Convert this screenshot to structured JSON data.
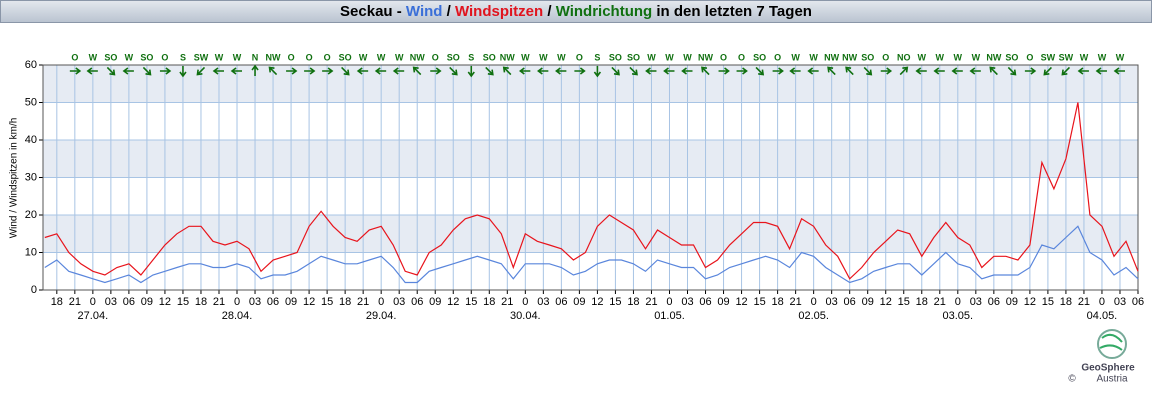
{
  "chart_data": {
    "type": "line",
    "title_parts": [
      {
        "text": "Seckau - ",
        "color": "#000000"
      },
      {
        "text": "Wind",
        "color": "#3a6fd8"
      },
      {
        "text": " / ",
        "color": "#000000"
      },
      {
        "text": "Windspitzen",
        "color": "#e0141e"
      },
      {
        "text": " / ",
        "color": "#000000"
      },
      {
        "text": "Windrichtung",
        "color": "#107010"
      },
      {
        "text": " in den letzten 7 Tagen",
        "color": "#000000"
      }
    ],
    "y_label": "Wind / Windspitzen in km/h",
    "x": [
      -8,
      -6,
      -4,
      -2,
      0,
      2,
      4,
      6,
      8,
      10,
      12,
      14,
      16,
      18,
      20,
      22,
      24,
      26,
      28,
      30,
      32,
      34,
      36,
      38,
      40,
      42,
      44,
      46,
      48,
      50,
      52,
      54,
      56,
      58,
      60,
      62,
      64,
      66,
      68,
      70,
      72,
      74,
      76,
      78,
      80,
      82,
      84,
      86,
      88,
      90,
      92,
      94,
      96,
      98,
      100,
      102,
      104,
      106,
      108,
      110,
      112,
      114,
      116,
      118,
      120,
      122,
      124,
      126,
      128,
      130,
      132,
      134,
      136,
      138,
      140,
      142,
      144,
      146,
      148,
      150,
      152,
      154,
      156,
      158,
      160,
      162,
      164,
      166,
      168,
      170,
      172,
      174
    ],
    "series": [
      {
        "name": "Windspitzen",
        "color": "#e8141c",
        "values": [
          14,
          15,
          10,
          7,
          5,
          4,
          6,
          7,
          4,
          8,
          12,
          15,
          17,
          17,
          13,
          12,
          13,
          11,
          5,
          8,
          9,
          10,
          17,
          21,
          17,
          14,
          13,
          16,
          17,
          12,
          5,
          4,
          10,
          12,
          16,
          19,
          20,
          19,
          15,
          6,
          15,
          13,
          12,
          11,
          8,
          10,
          17,
          20,
          18,
          16,
          11,
          16,
          14,
          12,
          12,
          6,
          8,
          12,
          15,
          18,
          18,
          17,
          11,
          19,
          17,
          12,
          9,
          3,
          6,
          10,
          13,
          16,
          15,
          9,
          14,
          18,
          14,
          12,
          6,
          9,
          9,
          8,
          12,
          34,
          27,
          35,
          50,
          20,
          17,
          9,
          13,
          5
        ]
      },
      {
        "name": "Wind",
        "color": "#5a86dc",
        "values": [
          6,
          8,
          5,
          4,
          3,
          2,
          3,
          4,
          2,
          4,
          5,
          6,
          7,
          7,
          6,
          6,
          7,
          6,
          3,
          4,
          4,
          5,
          7,
          9,
          8,
          7,
          7,
          8,
          9,
          6,
          2,
          2,
          5,
          6,
          7,
          8,
          9,
          8,
          7,
          3,
          7,
          7,
          7,
          6,
          4,
          5,
          7,
          8,
          8,
          7,
          5,
          8,
          7,
          6,
          6,
          3,
          4,
          6,
          7,
          8,
          9,
          8,
          6,
          10,
          9,
          6,
          4,
          2,
          3,
          5,
          6,
          7,
          7,
          4,
          7,
          10,
          7,
          6,
          3,
          4,
          4,
          4,
          6,
          12,
          11,
          14,
          17,
          10,
          8,
          4,
          6,
          3
        ]
      }
    ],
    "xlim": [
      -8.3,
      174
    ],
    "ylim": [
      0,
      60
    ],
    "yticks": [
      0,
      10,
      20,
      30,
      40,
      50,
      60
    ],
    "xticks": [
      {
        "value": -6,
        "label": "18"
      },
      {
        "value": -3,
        "label": "21"
      },
      {
        "value": 0,
        "label": "0"
      },
      {
        "value": 3,
        "label": "03"
      },
      {
        "value": 6,
        "label": "06"
      },
      {
        "value": 9,
        "label": "09"
      },
      {
        "value": 12,
        "label": "12"
      },
      {
        "value": 15,
        "label": "15"
      },
      {
        "value": 18,
        "label": "18"
      },
      {
        "value": 21,
        "label": "21"
      },
      {
        "value": 24,
        "label": "0"
      },
      {
        "value": 27,
        "label": "03"
      },
      {
        "value": 30,
        "label": "06"
      },
      {
        "value": 33,
        "label": "09"
      },
      {
        "value": 36,
        "label": "12"
      },
      {
        "value": 39,
        "label": "15"
      },
      {
        "value": 42,
        "label": "18"
      },
      {
        "value": 45,
        "label": "21"
      },
      {
        "value": 48,
        "label": "0"
      },
      {
        "value": 51,
        "label": "03"
      },
      {
        "value": 54,
        "label": "06"
      },
      {
        "value": 57,
        "label": "09"
      },
      {
        "value": 60,
        "label": "12"
      },
      {
        "value": 63,
        "label": "15"
      },
      {
        "value": 66,
        "label": "18"
      },
      {
        "value": 69,
        "label": "21"
      },
      {
        "value": 72,
        "label": "0"
      },
      {
        "value": 75,
        "label": "03"
      },
      {
        "value": 78,
        "label": "06"
      },
      {
        "value": 81,
        "label": "09"
      },
      {
        "value": 84,
        "label": "12"
      },
      {
        "value": 87,
        "label": "15"
      },
      {
        "value": 90,
        "label": "18"
      },
      {
        "value": 93,
        "label": "21"
      },
      {
        "value": 96,
        "label": "0"
      },
      {
        "value": 99,
        "label": "03"
      },
      {
        "value": 102,
        "label": "06"
      },
      {
        "value": 105,
        "label": "09"
      },
      {
        "value": 108,
        "label": "12"
      },
      {
        "value": 111,
        "label": "15"
      },
      {
        "value": 114,
        "label": "18"
      },
      {
        "value": 117,
        "label": "21"
      },
      {
        "value": 120,
        "label": "0"
      },
      {
        "value": 123,
        "label": "03"
      },
      {
        "value": 126,
        "label": "06"
      },
      {
        "value": 129,
        "label": "09"
      },
      {
        "value": 132,
        "label": "12"
      },
      {
        "value": 135,
        "label": "15"
      },
      {
        "value": 138,
        "label": "18"
      },
      {
        "value": 141,
        "label": "21"
      },
      {
        "value": 144,
        "label": "0"
      },
      {
        "value": 147,
        "label": "03"
      },
      {
        "value": 150,
        "label": "06"
      },
      {
        "value": 153,
        "label": "09"
      },
      {
        "value": 156,
        "label": "12"
      },
      {
        "value": 159,
        "label": "15"
      },
      {
        "value": 162,
        "label": "18"
      },
      {
        "value": 165,
        "label": "21"
      },
      {
        "value": 168,
        "label": "0"
      },
      {
        "value": 171,
        "label": "03"
      },
      {
        "value": 174,
        "label": "06"
      }
    ],
    "date_ticks": [
      {
        "value": 0,
        "label": "27.04."
      },
      {
        "value": 24,
        "label": "28.04."
      },
      {
        "value": 48,
        "label": "29.04."
      },
      {
        "value": 72,
        "label": "30.04."
      },
      {
        "value": 96,
        "label": "01.05."
      },
      {
        "value": 120,
        "label": "02.05."
      },
      {
        "value": 144,
        "label": "03.05."
      },
      {
        "value": 168,
        "label": "04.05."
      }
    ],
    "directions": [
      "O",
      "W",
      "SO",
      "W",
      "SO",
      "O",
      "S",
      "SW",
      "W",
      "W",
      "N",
      "NW",
      "O",
      "O",
      "O",
      "SO",
      "W",
      "W",
      "W",
      "NW",
      "O",
      "SO",
      "S",
      "SO",
      "NW",
      "W",
      "W",
      "W",
      "O",
      "S",
      "SO",
      "SO",
      "W",
      "W",
      "W",
      "NW",
      "O",
      "O",
      "SO",
      "O",
      "W",
      "W",
      "NW",
      "NW",
      "SO",
      "O",
      "NO",
      "W",
      "W",
      "W",
      "W",
      "NW",
      "SO",
      "O",
      "SW",
      "SW",
      "W",
      "W",
      "W"
    ],
    "direction_x": [
      -3,
      0,
      3,
      6,
      9,
      12,
      15,
      18,
      21,
      24,
      27,
      30,
      33,
      36,
      39,
      42,
      45,
      48,
      51,
      54,
      57,
      60,
      63,
      66,
      69,
      72,
      75,
      78,
      81,
      84,
      87,
      90,
      93,
      96,
      99,
      102,
      105,
      108,
      111,
      114,
      117,
      120,
      123,
      126,
      129,
      132,
      135,
      138,
      141,
      144,
      147,
      150,
      153,
      156,
      159,
      162,
      165,
      168,
      171
    ],
    "direction_color": "#107010",
    "grid": true,
    "logo": {
      "name": "GeoSphere",
      "sub": "Austria",
      "copyright": "©"
    }
  }
}
